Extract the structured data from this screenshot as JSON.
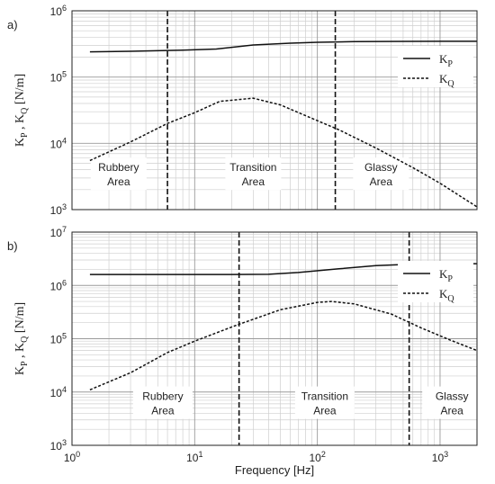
{
  "figure": {
    "xlabel": "Frequency [Hz]"
  },
  "chart_data": [
    {
      "type": "line",
      "panel_label": "a)",
      "x_scale": "log",
      "y_scale": "log",
      "xlim": [
        1,
        2000
      ],
      "ylim": [
        1000,
        1000000
      ],
      "xlabel": "Frequency [Hz]",
      "ylabel": "K_P , K_Q [N/m]",
      "grid": true,
      "legend_position": "right",
      "x_ticks": [
        {
          "value": 1,
          "base": "10",
          "exp": "0"
        },
        {
          "value": 10,
          "base": "10",
          "exp": "1"
        },
        {
          "value": 100,
          "base": "10",
          "exp": "2"
        },
        {
          "value": 1000,
          "base": "10",
          "exp": "3"
        }
      ],
      "y_ticks": [
        {
          "value": 1000,
          "base": "10",
          "exp": "3"
        },
        {
          "value": 10000,
          "base": "10",
          "exp": "4"
        },
        {
          "value": 100000,
          "base": "10",
          "exp": "5"
        },
        {
          "value": 1000000,
          "base": "10",
          "exp": "6"
        }
      ],
      "series": [
        {
          "name": "K_P",
          "style": "solid",
          "x": [
            1.4,
            3,
            8,
            15,
            30,
            60,
            100,
            200,
            500,
            1000,
            2000
          ],
          "y": [
            240000,
            245000,
            255000,
            265000,
            305000,
            325000,
            335000,
            343000,
            346000,
            347000,
            347000
          ]
        },
        {
          "name": "K_Q",
          "style": "dashed",
          "x": [
            1.4,
            3,
            6,
            10,
            16,
            30,
            50,
            100,
            150,
            300,
            600,
            1000,
            2000
          ],
          "y": [
            5500,
            10500,
            20000,
            29000,
            43000,
            48000,
            38000,
            22000,
            16000,
            8500,
            4300,
            2500,
            1100
          ]
        }
      ],
      "vlines": [
        6,
        140
      ],
      "regions": [
        {
          "line1": "Rubbery",
          "line2": "Area",
          "x": 2.4
        },
        {
          "line1": "Transition",
          "line2": "Area",
          "x": 30
        },
        {
          "line1": "Glassy",
          "line2": "Area",
          "x": 330
        }
      ]
    },
    {
      "type": "line",
      "panel_label": "b)",
      "x_scale": "log",
      "y_scale": "log",
      "xlim": [
        1,
        2000
      ],
      "ylim": [
        1000,
        10000000
      ],
      "xlabel": "Frequency [Hz]",
      "ylabel": "K_P , K_Q [N/m]",
      "grid": true,
      "legend_position": "right",
      "x_ticks": [
        {
          "value": 1,
          "base": "10",
          "exp": "0"
        },
        {
          "value": 10,
          "base": "10",
          "exp": "1"
        },
        {
          "value": 100,
          "base": "10",
          "exp": "2"
        },
        {
          "value": 1000,
          "base": "10",
          "exp": "3"
        }
      ],
      "y_ticks": [
        {
          "value": 1000,
          "base": "10",
          "exp": "3"
        },
        {
          "value": 10000,
          "base": "10",
          "exp": "4"
        },
        {
          "value": 100000,
          "base": "10",
          "exp": "5"
        },
        {
          "value": 1000000,
          "base": "10",
          "exp": "6"
        },
        {
          "value": 10000000,
          "base": "10",
          "exp": "7"
        }
      ],
      "series": [
        {
          "name": "K_P",
          "style": "solid",
          "x": [
            1.4,
            5,
            10,
            20,
            40,
            70,
            150,
            300,
            600,
            1000,
            2000
          ],
          "y": [
            1600000,
            1600000,
            1600000,
            1600000,
            1620000,
            1750000,
            2050000,
            2350000,
            2500000,
            2550000,
            2550000
          ]
        },
        {
          "name": "K_Q",
          "style": "dashed",
          "x": [
            1.4,
            3,
            6,
            10,
            22,
            50,
            100,
            130,
            200,
            400,
            700,
            1200,
            2000
          ],
          "y": [
            11000,
            23000,
            55000,
            90000,
            180000,
            350000,
            480000,
            500000,
            450000,
            290000,
            160000,
            95000,
            60000
          ]
        }
      ],
      "vlines": [
        23,
        560
      ],
      "regions": [
        {
          "line1": "Rubbery",
          "line2": "Area",
          "x": 5.5
        },
        {
          "line1": "Transition",
          "line2": "Area",
          "x": 115
        },
        {
          "line1": "Glassy",
          "line2": "Area",
          "x": 1250
        }
      ]
    }
  ]
}
